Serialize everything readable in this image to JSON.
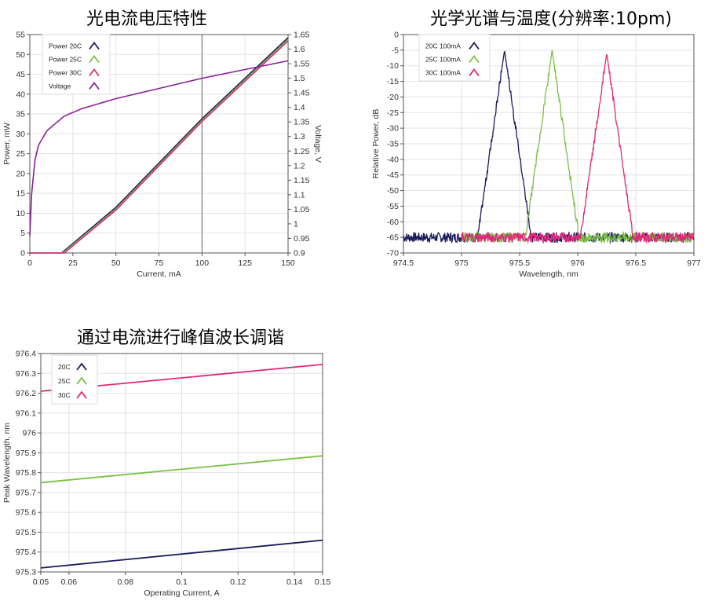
{
  "charts": {
    "c1": {
      "title": "光电流电压特性"
    },
    "c2": {
      "title": "光学光谱与温度(分辨率:10pm)"
    },
    "c3": {
      "title": "通过电流进行峰值波长调谐"
    }
  },
  "colors": {
    "c20": "#1a1a5e",
    "c25": "#7ac143",
    "c30": "#e0287a",
    "voltage": "#8a1f9a",
    "grid": "#e3e3e3"
  },
  "chart_data": [
    {
      "type": "line",
      "title": "光电流电压特性",
      "xlabel": "Current, mA",
      "ylabel": "Power, mW",
      "y2label": "Voltage, V",
      "xlim": [
        0,
        150
      ],
      "ylim": [
        0,
        55
      ],
      "y2lim": [
        0.9,
        1.65
      ],
      "xticks": [
        "0",
        "25",
        "50",
        "75",
        "100",
        "125",
        "150"
      ],
      "yticks": [
        "0",
        "5",
        "10",
        "15",
        "20",
        "25",
        "30",
        "35",
        "40",
        "45",
        "50",
        "55"
      ],
      "y2ticks": [
        "0.9",
        "0.95",
        "1",
        "1.05",
        "1.1",
        "1.15",
        "1.2",
        "1.25",
        "1.3",
        "1.35",
        "1.4",
        "1.45",
        "1.5",
        "1.55",
        "1.6",
        "1.65"
      ],
      "cursor_x": 100,
      "legend": "top-left",
      "series": [
        {
          "name": "Power 20C",
          "axis": "left",
          "x": [
            0,
            18.5,
            50,
            100,
            150
          ],
          "y": [
            0,
            0,
            11.5,
            33.8,
            54.2
          ]
        },
        {
          "name": "Power 25C",
          "axis": "left",
          "x": [
            0,
            19.2,
            50,
            100,
            150
          ],
          "y": [
            0,
            0,
            11.1,
            33.4,
            53.8
          ]
        },
        {
          "name": "Power 30C",
          "axis": "left",
          "x": [
            0,
            20.0,
            50,
            100,
            150
          ],
          "y": [
            0,
            0,
            10.8,
            33.1,
            53.4
          ]
        },
        {
          "name": "Voltage",
          "axis": "right",
          "x": [
            0,
            1,
            3,
            5,
            10,
            20,
            30,
            50,
            75,
            100,
            125,
            150
          ],
          "y": [
            0.96,
            1.1,
            1.22,
            1.27,
            1.32,
            1.37,
            1.395,
            1.43,
            1.465,
            1.5,
            1.53,
            1.56
          ]
        }
      ]
    },
    {
      "type": "line",
      "title": "光学光谱与温度(分辨率:10pm)",
      "xlabel": "Wavelength, nm",
      "ylabel": "Relative Power, dB",
      "xlim": [
        974.5,
        977
      ],
      "ylim": [
        -70,
        0
      ],
      "xticks": [
        "974.5",
        "975",
        "975.5",
        "976",
        "976.5",
        "977"
      ],
      "yticks": [
        "-70",
        "-65",
        "-60",
        "-55",
        "-50",
        "-45",
        "-40",
        "-35",
        "-30",
        "-25",
        "-20",
        "-15",
        "-10",
        "-5",
        "0"
      ],
      "legend": "top-left",
      "series": [
        {
          "name": "20C 100mA",
          "peak_x": 975.37,
          "peak_y": -5,
          "x_range": [
            974.5,
            977
          ],
          "noise_floor": -65
        },
        {
          "name": "25C 100mA",
          "peak_x": 975.78,
          "peak_y": -5,
          "x_range": [
            975.0,
            977
          ],
          "noise_floor": -65
        },
        {
          "name": "30C 100mA",
          "peak_x": 976.25,
          "peak_y": -6,
          "x_range": [
            975.0,
            977
          ],
          "noise_floor": -65
        }
      ]
    },
    {
      "type": "line",
      "title": "通过电流进行峰值波长调谐",
      "xlabel": "Operating Current, A",
      "ylabel": "Peak Wavelength, nm",
      "xlim": [
        0.05,
        0.15
      ],
      "ylim": [
        975.3,
        976.4
      ],
      "xticks": [
        "0.05",
        "0.06",
        "0.08",
        "0.1",
        "0.12",
        "0.14",
        "0.15"
      ],
      "yticks": [
        "975.3",
        "975.4",
        "975.5",
        "975.6",
        "975.7",
        "975.8",
        "975.9",
        "976",
        "976.1",
        "976.2",
        "976.3",
        "976.4"
      ],
      "legend": "top-left",
      "series": [
        {
          "name": "20C",
          "x": [
            0.05,
            0.15
          ],
          "y": [
            975.32,
            975.46
          ]
        },
        {
          "name": "25C",
          "x": [
            0.05,
            0.15
          ],
          "y": [
            975.75,
            975.885
          ]
        },
        {
          "name": "30C",
          "x": [
            0.05,
            0.15
          ],
          "y": [
            976.21,
            976.345
          ]
        }
      ]
    }
  ]
}
